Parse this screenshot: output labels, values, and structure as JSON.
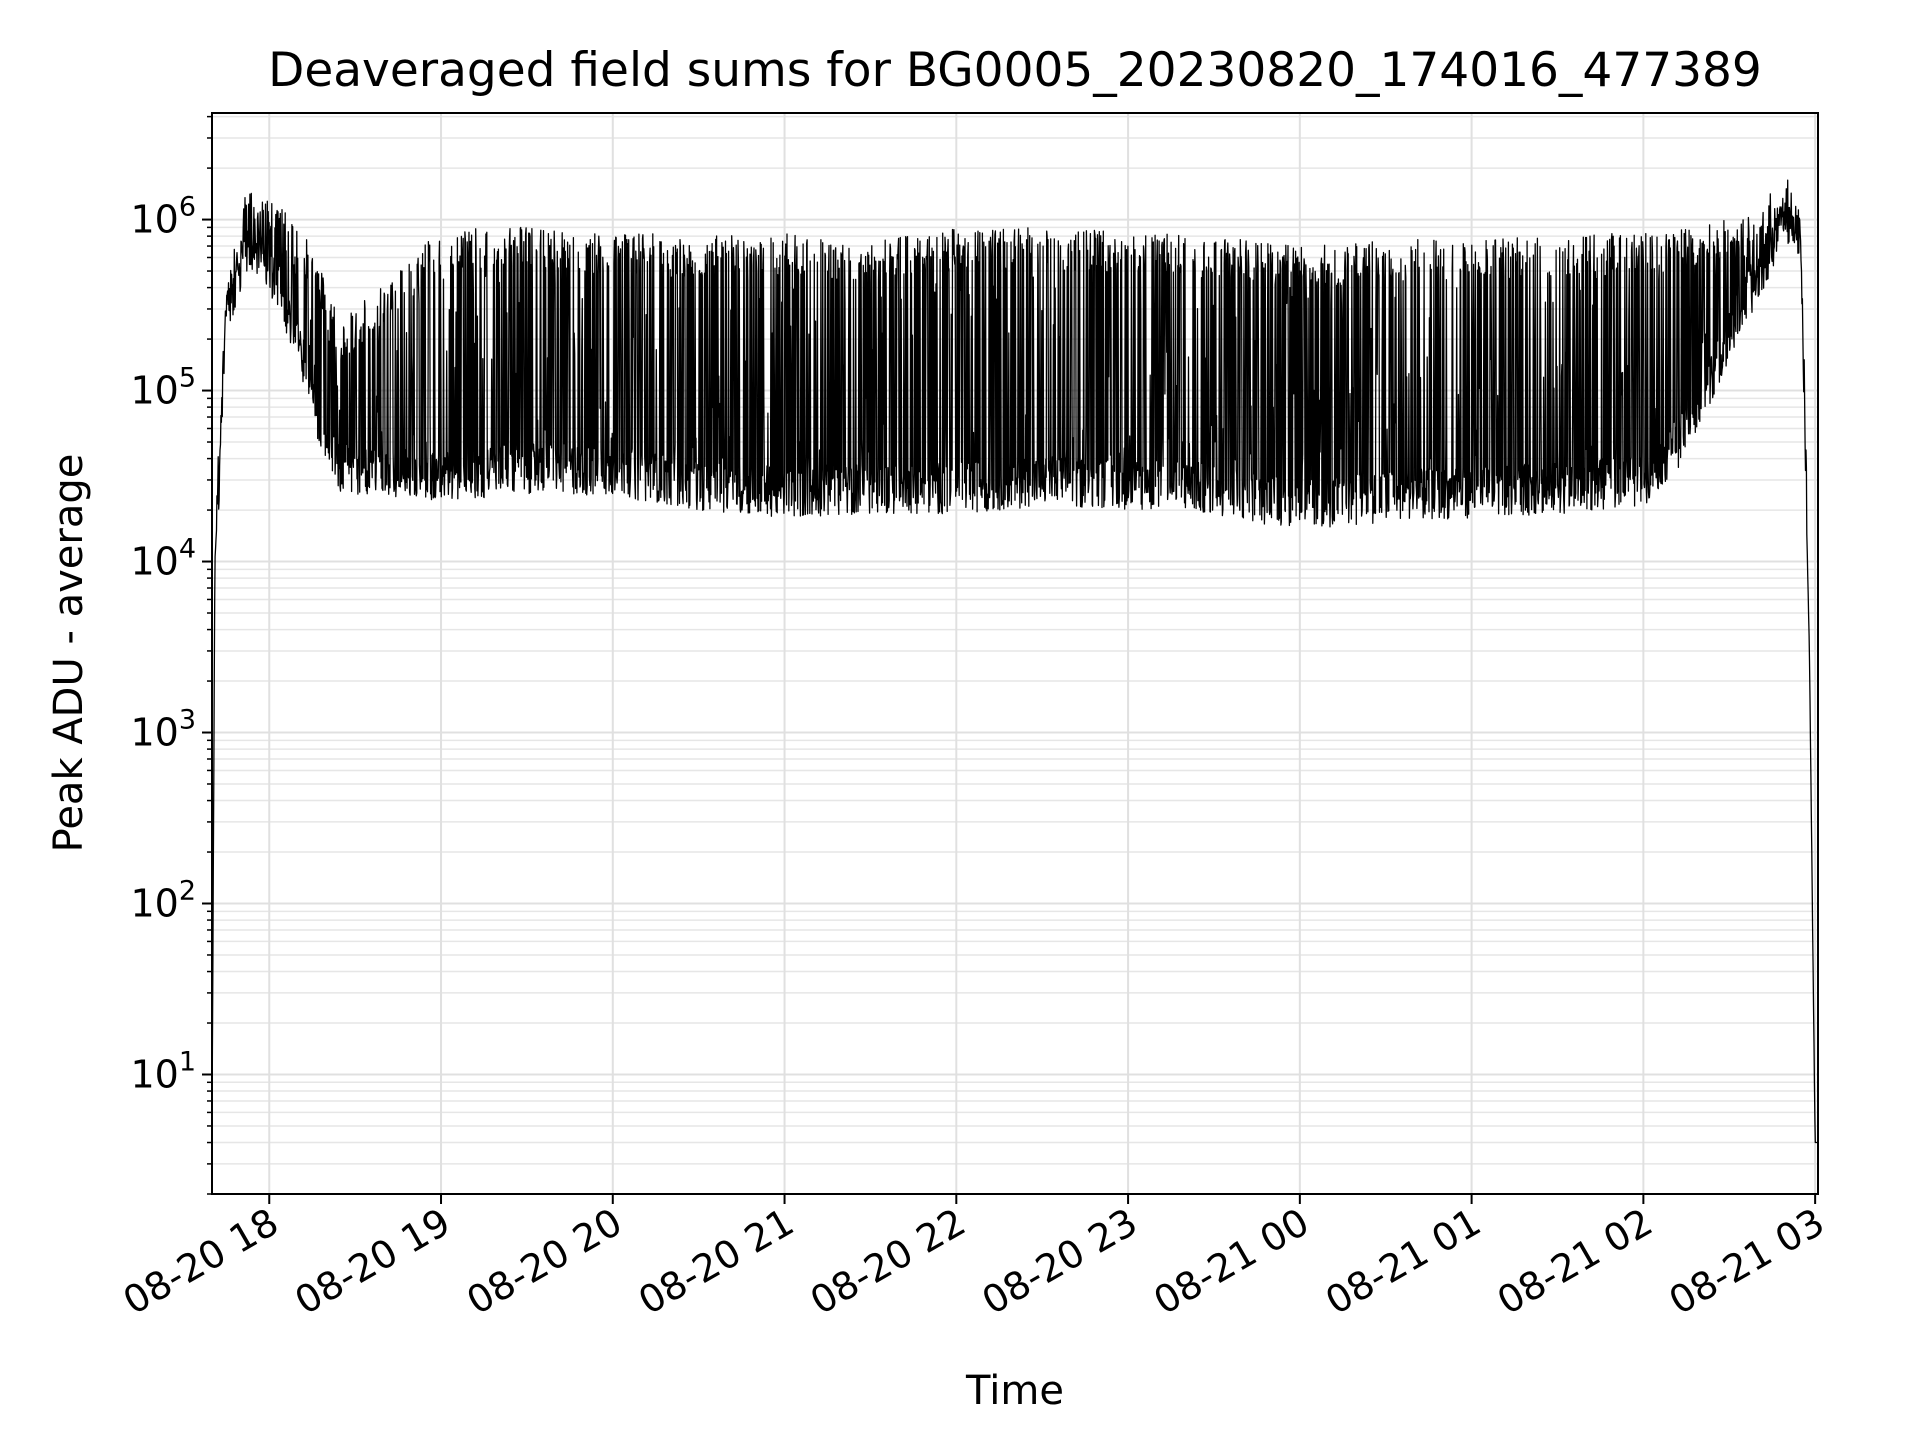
{
  "chart_data": {
    "type": "line",
    "title": "Deaveraged field sums for BG0005_20230820_174016_477389",
    "xlabel": "Time",
    "ylabel": "Peak ADU - average",
    "yscale": "log",
    "xlim": [
      "2023-08-20 17:40",
      "2023-08-21 03:01"
    ],
    "ylim": [
      2,
      4200000
    ],
    "grid": true,
    "series_color": "#000000",
    "x_ticks": [
      {
        "t": "2023-08-20 18:00",
        "label": "08-20 18"
      },
      {
        "t": "2023-08-20 19:00",
        "label": "08-20 19"
      },
      {
        "t": "2023-08-20 20:00",
        "label": "08-20 20"
      },
      {
        "t": "2023-08-20 21:00",
        "label": "08-20 21"
      },
      {
        "t": "2023-08-20 22:00",
        "label": "08-20 22"
      },
      {
        "t": "2023-08-20 23:00",
        "label": "08-20 23"
      },
      {
        "t": "2023-08-21 00:00",
        "label": "08-21 00"
      },
      {
        "t": "2023-08-21 01:00",
        "label": "08-21 01"
      },
      {
        "t": "2023-08-21 02:00",
        "label": "08-21 02"
      },
      {
        "t": "2023-08-21 03:00",
        "label": "08-21 03"
      }
    ],
    "y_ticks": [
      {
        "value": 10,
        "base": "10",
        "exp": "1"
      },
      {
        "value": 100,
        "base": "10",
        "exp": "2"
      },
      {
        "value": 1000,
        "base": "10",
        "exp": "3"
      },
      {
        "value": 10000,
        "base": "10",
        "exp": "4"
      },
      {
        "value": 100000,
        "base": "10",
        "exp": "5"
      },
      {
        "value": 1000000,
        "base": "10",
        "exp": "6"
      }
    ],
    "envelope": {
      "x": [
        "2023-08-20 17:40",
        "2023-08-20 17:41",
        "2023-08-20 17:45",
        "2023-08-20 17:52",
        "2023-08-20 18:00",
        "2023-08-20 18:10",
        "2023-08-20 18:15",
        "2023-08-20 18:25",
        "2023-08-20 19:00",
        "2023-08-20 19:30",
        "2023-08-20 20:00",
        "2023-08-20 20:30",
        "2023-08-20 21:00",
        "2023-08-20 21:30",
        "2023-08-20 22:00",
        "2023-08-20 22:30",
        "2023-08-20 23:00",
        "2023-08-20 23:30",
        "2023-08-21 00:00",
        "2023-08-21 00:30",
        "2023-08-21 01:00",
        "2023-08-21 01:30",
        "2023-08-21 02:00",
        "2023-08-21 02:15",
        "2023-08-21 02:30",
        "2023-08-21 02:45",
        "2023-08-21 02:50",
        "2023-08-21 02:55",
        "2023-08-21 02:58",
        "2023-08-21 03:00",
        "2023-08-21 03:01"
      ],
      "low": [
        4,
        10000,
        200000,
        500000,
        380000,
        150000,
        60000,
        25000,
        22000,
        25000,
        24000,
        20000,
        18000,
        19000,
        19000,
        21000,
        20000,
        19000,
        15000,
        17000,
        18000,
        19000,
        21000,
        40000,
        150000,
        500000,
        900000,
        600000,
        3000,
        4,
        4
      ],
      "high": [
        4,
        10000,
        400000,
        1500000,
        1400000,
        1000000,
        700000,
        250000,
        900000,
        900000,
        850000,
        800000,
        850000,
        750000,
        900000,
        900000,
        850000,
        800000,
        700000,
        750000,
        800000,
        800000,
        850000,
        900000,
        1000000,
        1500000,
        1300000,
        900000,
        3000,
        4,
        4
      ]
    }
  }
}
